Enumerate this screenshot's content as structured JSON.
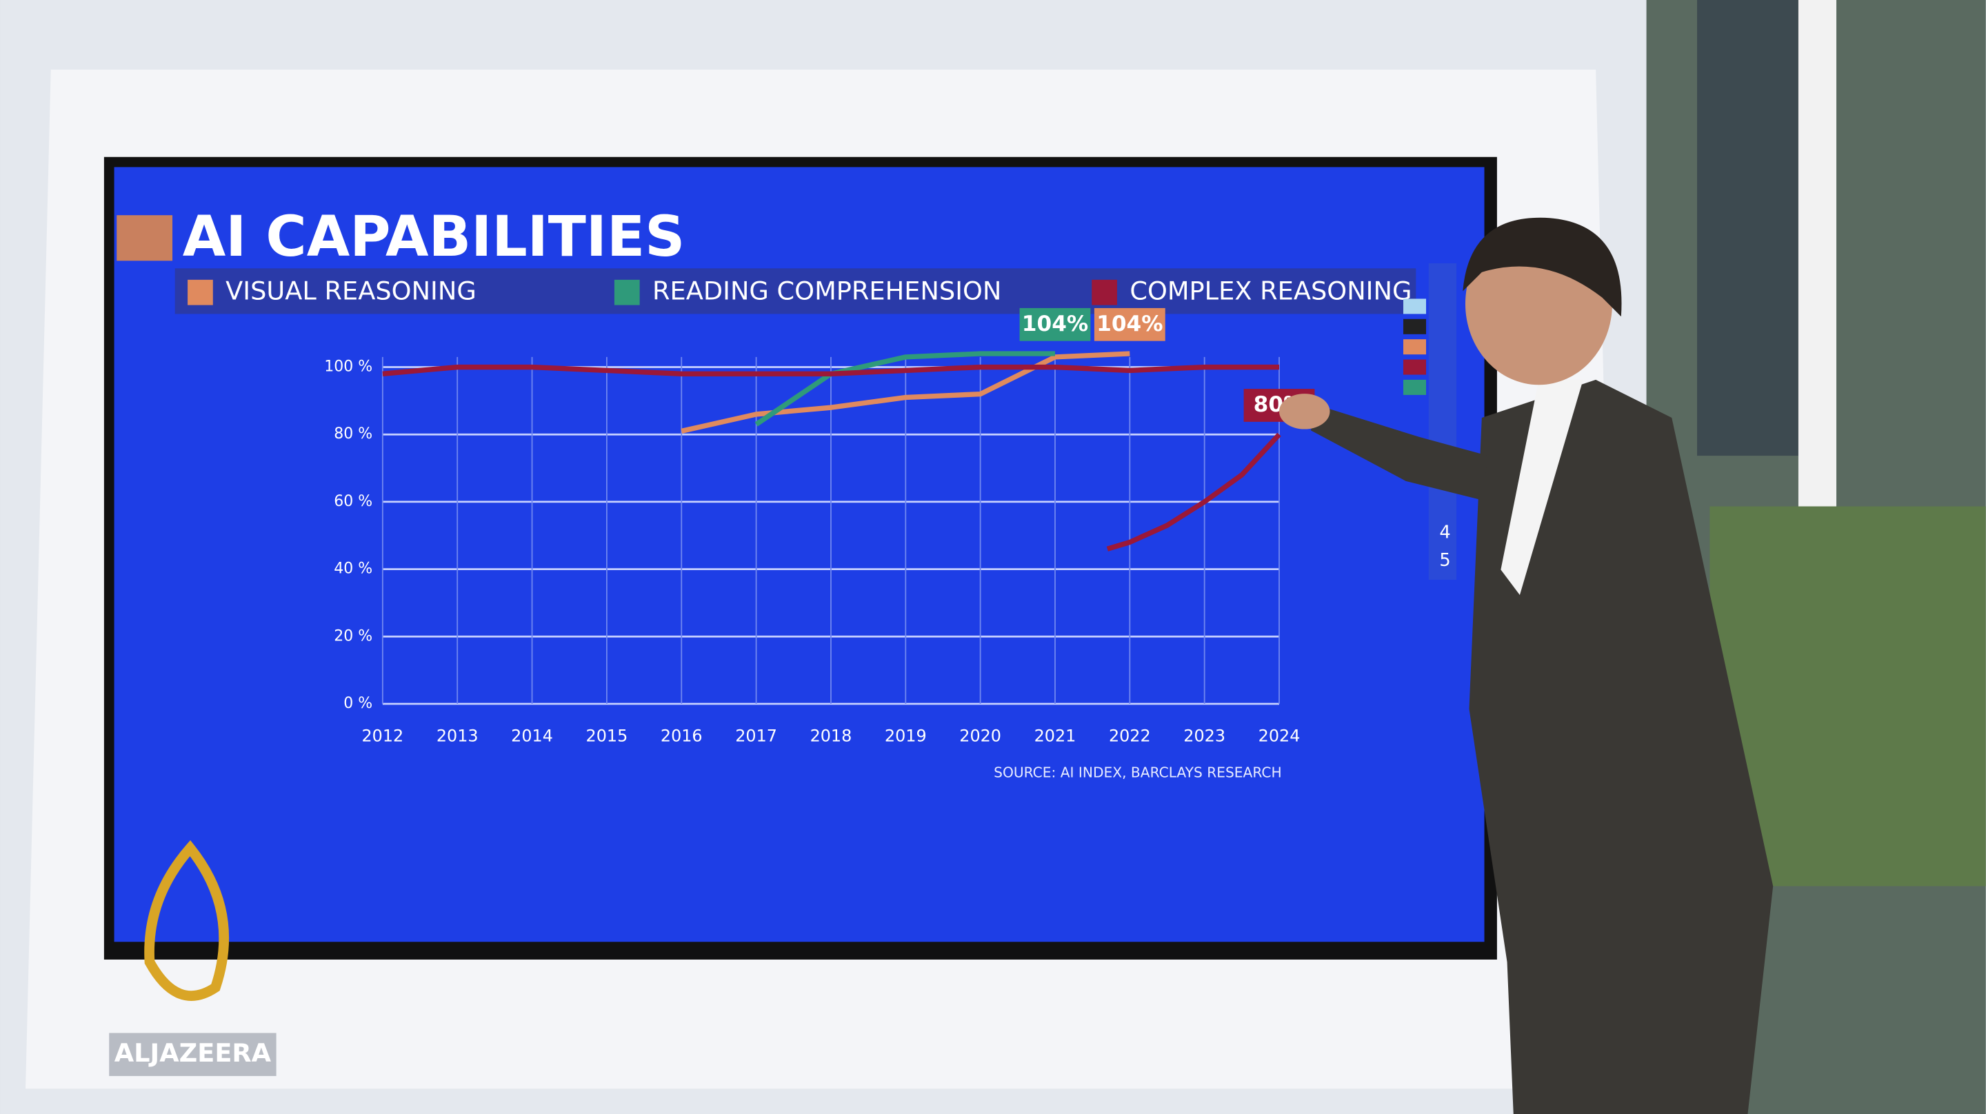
{
  "chart_data": {
    "type": "line",
    "title": "AI CAPABILITIES",
    "source": "SOURCE:  AI INDEX, BARCLAYS RESEARCH",
    "xlim": [
      2012,
      2024
    ],
    "xticks": [
      2012,
      2013,
      2014,
      2015,
      2016,
      2017,
      2018,
      2019,
      2020,
      2021,
      2022,
      2023,
      2024
    ],
    "ylim": [
      0,
      100
    ],
    "yticks": [
      {
        "value": 0,
        "label": "0 %"
      },
      {
        "value": 20,
        "label": "20 %"
      },
      {
        "value": 40,
        "label": "40 %"
      },
      {
        "value": 60,
        "label": "60 %"
      },
      {
        "value": 80,
        "label": "80 %"
      },
      {
        "value": 100,
        "label": "100 %"
      }
    ],
    "grid": true,
    "series": [
      {
        "name": "VISUAL REASONING",
        "color": "#e08a5e",
        "x": [
          2016,
          2017,
          2018,
          2019,
          2020,
          2021,
          2022
        ],
        "values": [
          81,
          86,
          88,
          91,
          92,
          103,
          104
        ],
        "value_labels": [
          null,
          null,
          null,
          null,
          null,
          null,
          "104%"
        ]
      },
      {
        "name": "READING COMPREHENSION",
        "color": "#2f9a7a",
        "x": [
          2017,
          2018,
          2019,
          2020,
          2021
        ],
        "values": [
          83,
          98,
          103,
          104,
          104
        ],
        "value_labels": [
          null,
          null,
          null,
          null,
          "104%"
        ]
      },
      {
        "name": "COMPLEX REASONING",
        "color": "#9b1838",
        "x": [
          2021.7,
          2022,
          2022.5,
          2023,
          2023.5,
          2024
        ],
        "values": [
          46,
          48,
          53,
          60,
          68,
          80
        ],
        "value_labels": [
          null,
          null,
          null,
          null,
          null,
          "80%"
        ]
      },
      {
        "color": "#9b1838",
        "x": [
          2012,
          2013,
          2014,
          2015,
          2016,
          2017,
          2018,
          2019,
          2020,
          2021,
          2022,
          2023,
          2024
        ],
        "values": [
          98,
          100,
          100,
          99,
          98,
          98,
          98,
          99,
          100,
          100,
          99,
          100,
          100
        ]
      }
    ]
  },
  "logo": "ALJAZEERA",
  "toolbar": [
    "4",
    "5"
  ]
}
